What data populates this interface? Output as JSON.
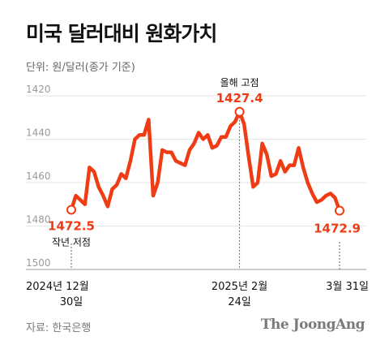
{
  "title": "미국 달러대비 원화가치",
  "unit_label": "단위: 원/달러(종가 기준)",
  "source": "자료: 한국은행",
  "brand": "The JoongAng",
  "colors": {
    "line": "#f03c14",
    "grid": "#e6e6e6",
    "axis": "#9a9a9a",
    "text": "#111111",
    "sub": "#666666"
  },
  "chart_data": {
    "type": "line",
    "title": "미국 달러대비 원화가치",
    "ylabel": "단위: 원/달러(종가 기준)",
    "y_inverted": true,
    "ylim": [
      1500,
      1420
    ],
    "yticks": [
      1420,
      1440,
      1460,
      1480,
      1500
    ],
    "grid": true,
    "x_tick_labels": [
      {
        "line1": "2024년 12월",
        "line2": "30일",
        "index": 0
      },
      {
        "line1": "2025년 2월",
        "line2": "24일",
        "index": 37
      },
      {
        "line1": "3월 31일",
        "line2": "",
        "index": 59
      }
    ],
    "series": [
      {
        "values": [
          1472.5,
          1466,
          1468,
          1470,
          1453,
          1455,
          1462,
          1466,
          1471,
          1463,
          1461,
          1456,
          1458,
          1450,
          1440,
          1438,
          1438,
          1431,
          1466,
          1460,
          1445,
          1446,
          1446,
          1450,
          1451,
          1452,
          1445,
          1442,
          1437,
          1440,
          1438,
          1444,
          1443,
          1439,
          1439,
          1434,
          1432,
          1427.4,
          1433,
          1448,
          1462,
          1460,
          1442,
          1447,
          1457,
          1456,
          1450,
          1455,
          1452,
          1452,
          1444,
          1453,
          1460,
          1465,
          1469,
          1468,
          1466,
          1465,
          1467,
          1472.9
        ]
      }
    ],
    "annotations": [
      {
        "index": 0,
        "value_label": "1472.5",
        "note": "작년 저점"
      },
      {
        "index": 37,
        "value_label": "1427.4",
        "note": "올해 고점"
      },
      {
        "index": 59,
        "value_label": "1472.9",
        "note": ""
      }
    ]
  }
}
